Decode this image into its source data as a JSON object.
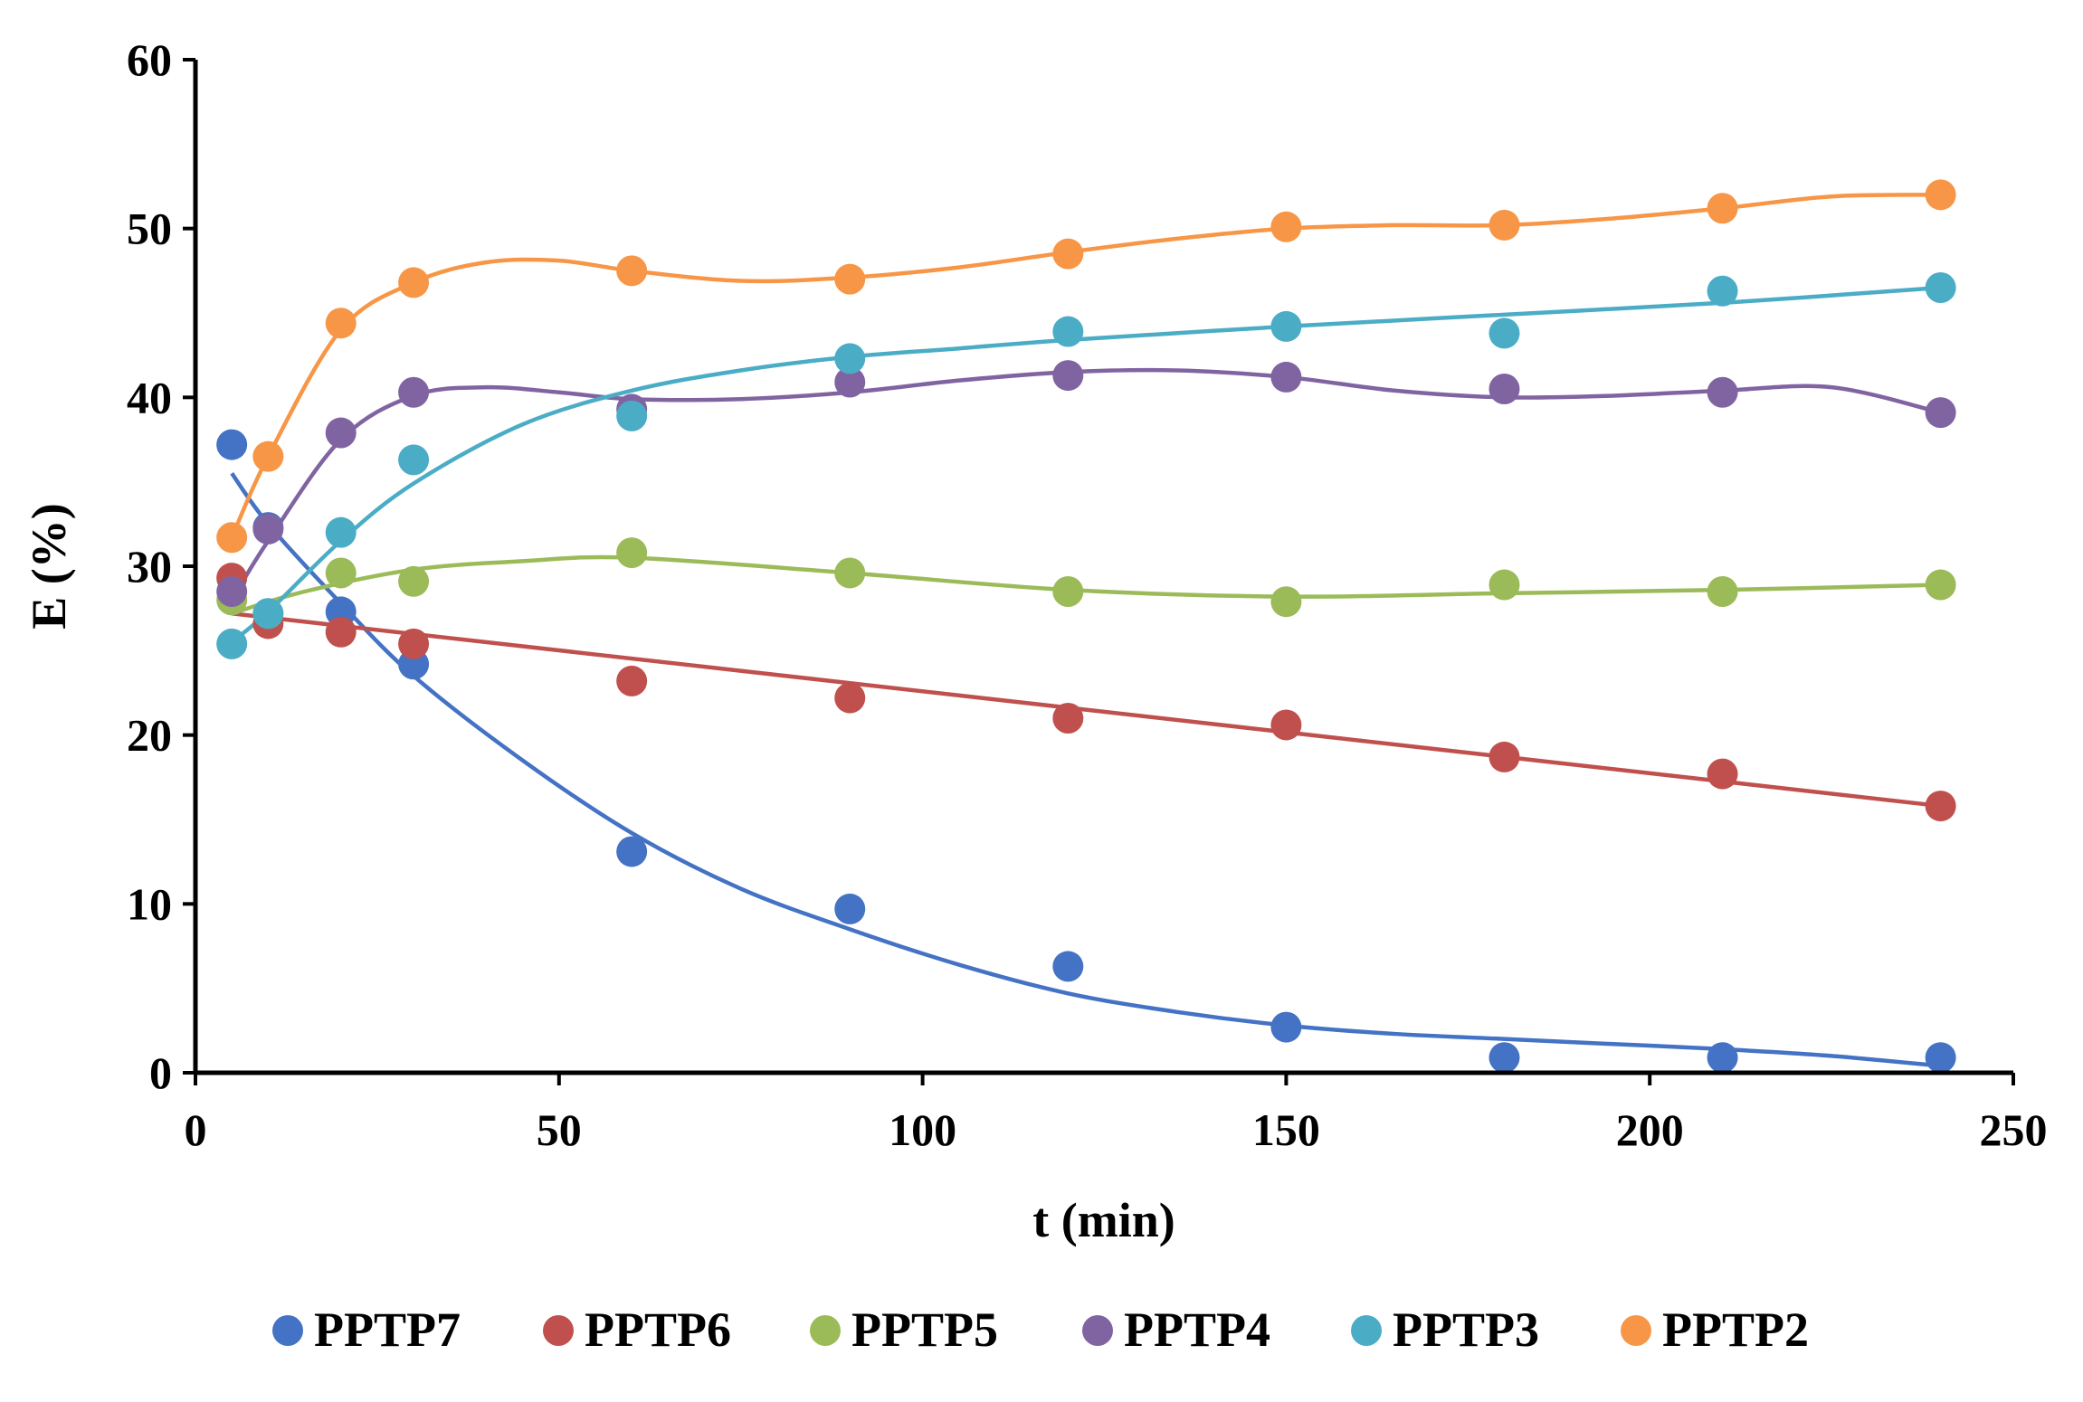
{
  "chart_data": {
    "type": "scatter",
    "title": "",
    "xlabel": "t (min)",
    "ylabel": "E (%)",
    "xlim": [
      0,
      250
    ],
    "ylim": [
      0,
      60
    ],
    "xticks": [
      0,
      50,
      100,
      150,
      200,
      250
    ],
    "yticks": [
      0,
      10,
      20,
      30,
      40,
      50,
      60
    ],
    "grid": false,
    "legend_position": "bottom",
    "series": [
      {
        "name": "PPTP7",
        "color": "#4472C4",
        "x": [
          5,
          10,
          20,
          30,
          60,
          90,
          120,
          150,
          180,
          210,
          240
        ],
        "y": [
          37.2,
          32.3,
          27.3,
          24.2,
          13.1,
          9.7,
          6.3,
          2.7,
          0.9,
          0.9,
          0.9
        ],
        "trend": [
          [
            5,
            35.5
          ],
          [
            10,
            32.5
          ],
          [
            20,
            27.8
          ],
          [
            30,
            23.5
          ],
          [
            45,
            18.5
          ],
          [
            60,
            14.2
          ],
          [
            75,
            10.9
          ],
          [
            90,
            8.5
          ],
          [
            105,
            6.4
          ],
          [
            120,
            4.7
          ],
          [
            135,
            3.6
          ],
          [
            150,
            2.8
          ],
          [
            165,
            2.3
          ],
          [
            180,
            2.0
          ],
          [
            195,
            1.7
          ],
          [
            210,
            1.4
          ],
          [
            225,
            1.0
          ],
          [
            240,
            0.4
          ]
        ]
      },
      {
        "name": "PPTP6",
        "color": "#C0504D",
        "x": [
          5,
          10,
          20,
          30,
          60,
          90,
          120,
          150,
          180,
          210,
          240
        ],
        "y": [
          29.3,
          26.6,
          26.1,
          25.4,
          23.2,
          22.2,
          21.0,
          20.6,
          18.7,
          17.7,
          15.8
        ],
        "trend": [
          [
            5,
            27.2
          ],
          [
            240,
            15.8
          ]
        ]
      },
      {
        "name": "PPTP5",
        "color": "#9BBB59",
        "x": [
          5,
          10,
          20,
          30,
          60,
          90,
          120,
          150,
          180,
          210,
          240
        ],
        "y": [
          28.0,
          27.2,
          29.6,
          29.1,
          30.8,
          29.6,
          28.5,
          27.9,
          28.9,
          28.5,
          28.9
        ],
        "trend": [
          [
            5,
            27.2
          ],
          [
            15,
            28.5
          ],
          [
            30,
            29.8
          ],
          [
            45,
            30.3
          ],
          [
            60,
            30.5
          ],
          [
            90,
            29.6
          ],
          [
            120,
            28.6
          ],
          [
            150,
            28.2
          ],
          [
            180,
            28.4
          ],
          [
            210,
            28.6
          ],
          [
            240,
            28.9
          ]
        ]
      },
      {
        "name": "PPTP4",
        "color": "#8064A2",
        "x": [
          5,
          10,
          20,
          30,
          60,
          90,
          120,
          150,
          180,
          210,
          240
        ],
        "y": [
          28.5,
          32.2,
          37.9,
          40.3,
          39.3,
          40.9,
          41.3,
          41.2,
          40.5,
          40.3,
          39.1
        ],
        "trend": [
          [
            5,
            28.0
          ],
          [
            10,
            31.5
          ],
          [
            20,
            37.5
          ],
          [
            30,
            40.1
          ],
          [
            40,
            40.6
          ],
          [
            50,
            40.3
          ],
          [
            60,
            39.9
          ],
          [
            75,
            39.9
          ],
          [
            90,
            40.3
          ],
          [
            105,
            41.0
          ],
          [
            120,
            41.5
          ],
          [
            135,
            41.6
          ],
          [
            150,
            41.2
          ],
          [
            165,
            40.4
          ],
          [
            180,
            40.0
          ],
          [
            195,
            40.1
          ],
          [
            210,
            40.4
          ],
          [
            225,
            40.6
          ],
          [
            240,
            39.1
          ]
        ]
      },
      {
        "name": "PPTP3",
        "color": "#4BACC6",
        "x": [
          5,
          10,
          20,
          30,
          60,
          90,
          120,
          150,
          180,
          210,
          240
        ],
        "y": [
          25.4,
          27.2,
          32.0,
          36.3,
          38.9,
          42.3,
          43.9,
          44.2,
          43.8,
          46.3,
          46.5
        ],
        "trend": [
          [
            5,
            25.5
          ],
          [
            10,
            27.3
          ],
          [
            20,
            31.5
          ],
          [
            30,
            34.9
          ],
          [
            45,
            38.4
          ],
          [
            60,
            40.4
          ],
          [
            75,
            41.6
          ],
          [
            90,
            42.4
          ],
          [
            105,
            42.9
          ],
          [
            120,
            43.4
          ],
          [
            150,
            44.2
          ],
          [
            180,
            44.9
          ],
          [
            210,
            45.6
          ],
          [
            240,
            46.5
          ]
        ]
      },
      {
        "name": "PPTP2",
        "color": "#F79646",
        "x": [
          5,
          10,
          20,
          30,
          60,
          90,
          120,
          150,
          180,
          210,
          240
        ],
        "y": [
          31.7,
          36.5,
          44.4,
          46.8,
          47.5,
          47.0,
          48.5,
          50.1,
          50.2,
          51.2,
          52.0
        ],
        "trend": [
          [
            5,
            31.7
          ],
          [
            10,
            36.5
          ],
          [
            20,
            44.0
          ],
          [
            30,
            46.8
          ],
          [
            40,
            48.0
          ],
          [
            50,
            48.1
          ],
          [
            60,
            47.5
          ],
          [
            75,
            46.9
          ],
          [
            90,
            47.1
          ],
          [
            105,
            47.7
          ],
          [
            120,
            48.6
          ],
          [
            135,
            49.4
          ],
          [
            150,
            50.0
          ],
          [
            165,
            50.2
          ],
          [
            180,
            50.2
          ],
          [
            195,
            50.6
          ],
          [
            210,
            51.2
          ],
          [
            225,
            51.9
          ],
          [
            240,
            52.0
          ]
        ]
      }
    ]
  }
}
